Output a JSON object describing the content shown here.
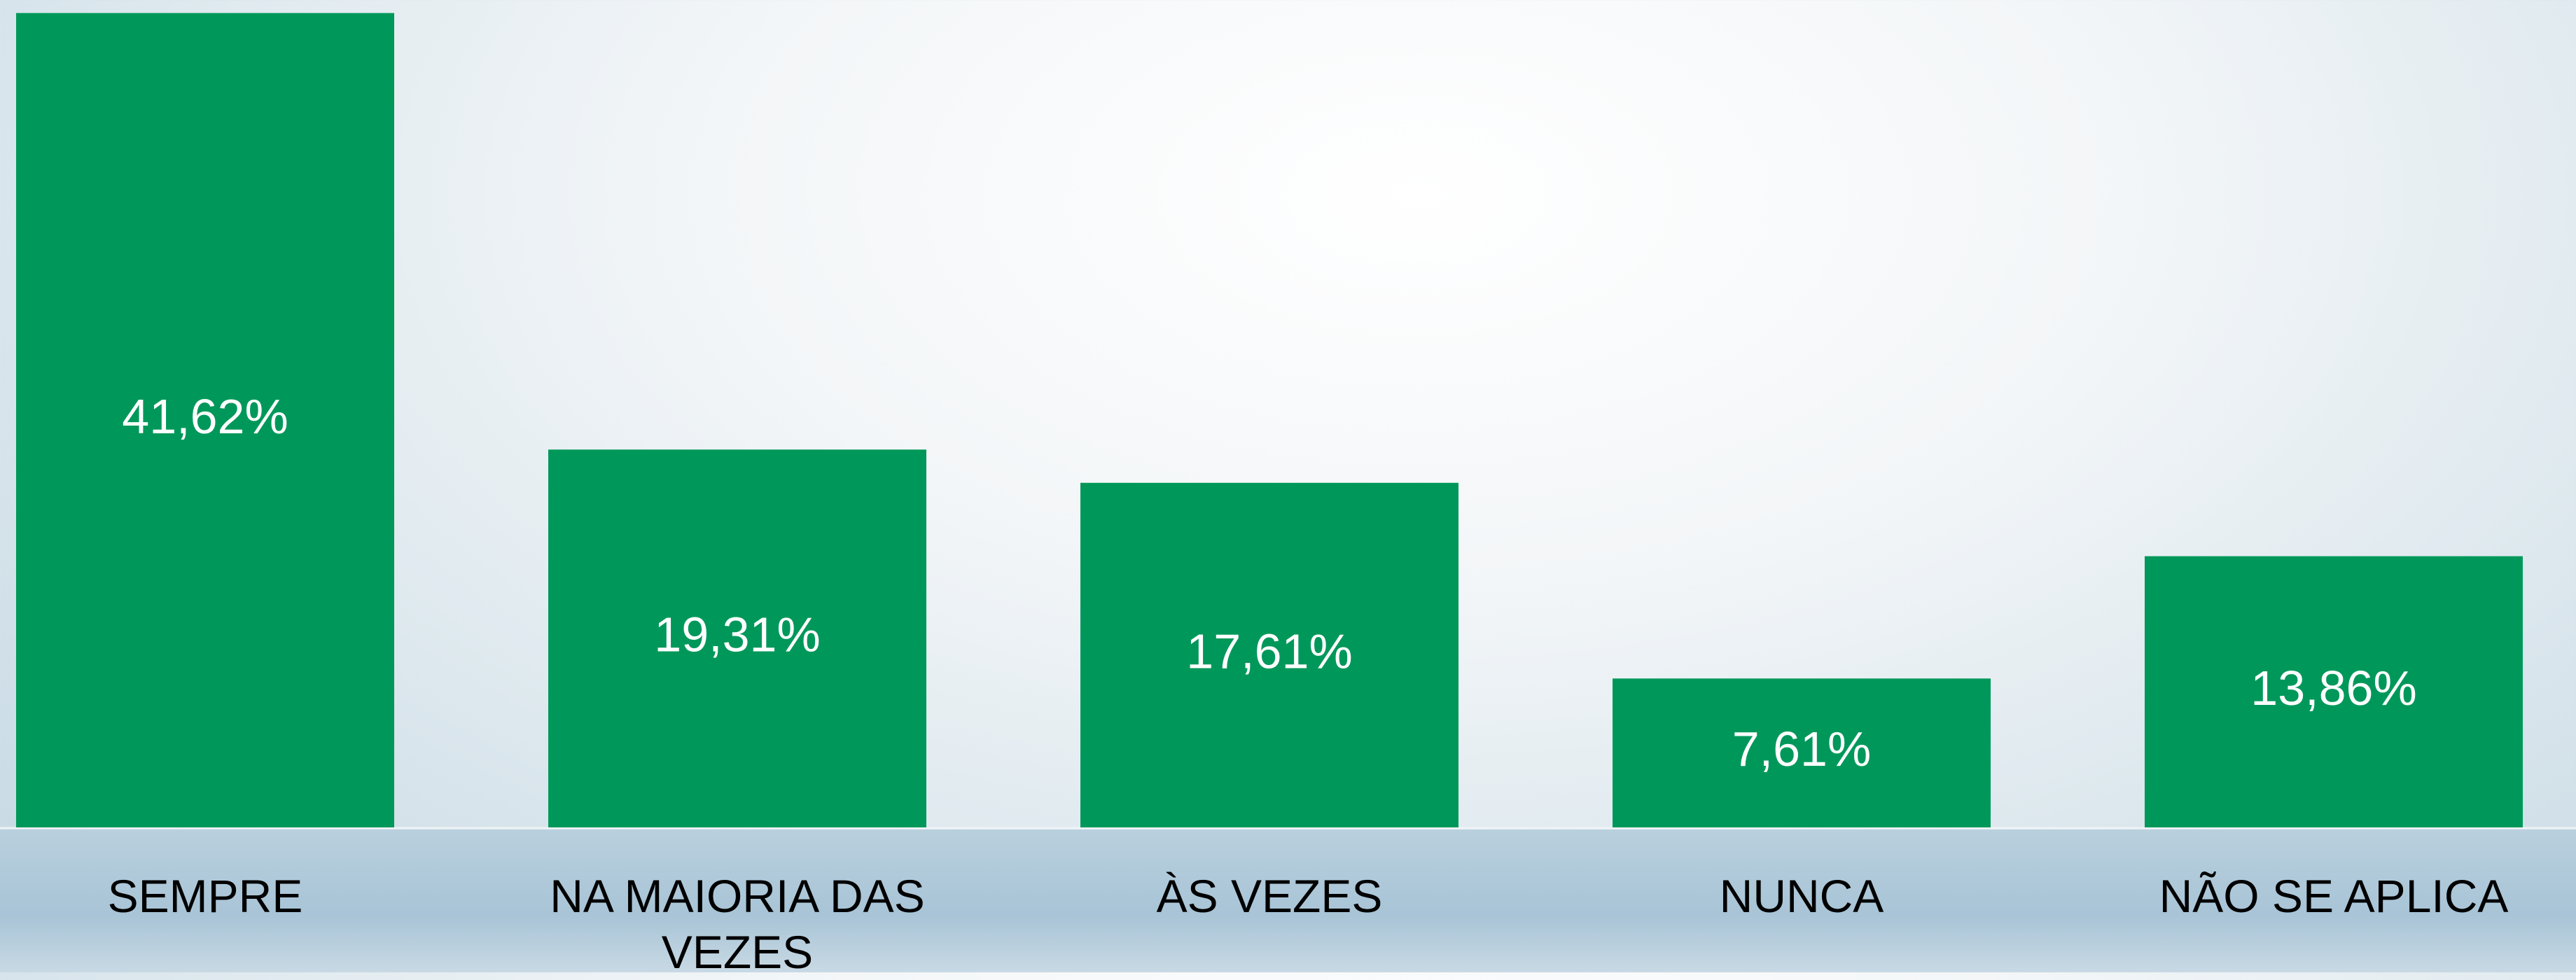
{
  "chart_data": {
    "type": "bar",
    "categories": [
      "SEMPRE",
      "NA MAIORIA DAS VEZES",
      "ÀS VEZES",
      "NUNCA",
      "NÃO SE APLICA"
    ],
    "values": [
      41.62,
      19.31,
      17.61,
      7.61,
      13.86
    ],
    "value_labels": [
      "41,62%",
      "19,31%",
      "17,61%",
      "7,61%",
      "13,86%"
    ],
    "color": "#00985a",
    "ylim": [
      0,
      42
    ]
  }
}
